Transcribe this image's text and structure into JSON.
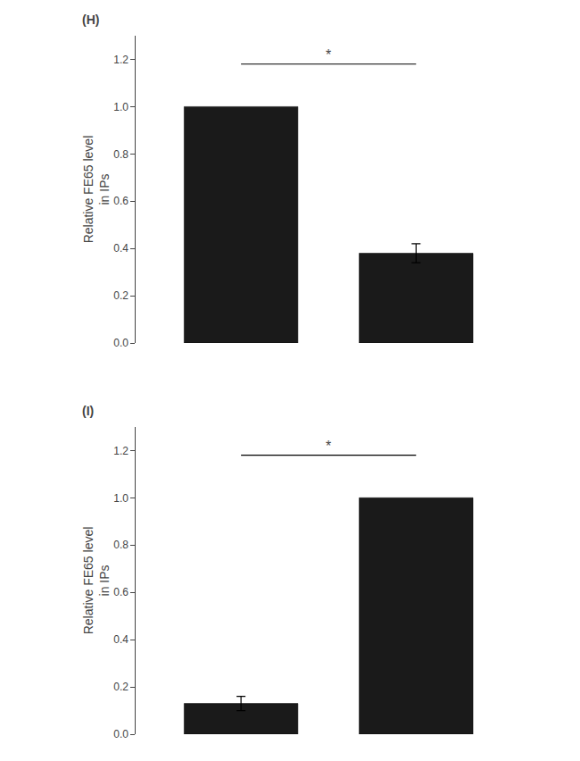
{
  "chart_data": [
    {
      "type": "bar",
      "title": "(H)",
      "categories": [
        null,
        null
      ],
      "values": [
        1.0,
        0.38
      ],
      "errors": [
        null,
        0.04
      ],
      "color": "#1a1a1a",
      "ylabel": "Relative FE65 level\nin IPs",
      "ylim": [
        0,
        1.3
      ],
      "yticks": [
        {
          "value": 0,
          "label": "0.0"
        },
        0.2,
        0.4,
        0.6,
        0.8,
        {
          "value": 1,
          "label": "1.0"
        },
        1.2
      ],
      "tick_labels": "y",
      "grid": false,
      "annotations": [
        {
          "text": "*",
          "y": 1.18
        }
      ]
    },
    {
      "type": "bar",
      "title": "(I)",
      "categories": [
        null,
        null
      ],
      "values": [
        0.13,
        1.0
      ],
      "errors": [
        0.03,
        null
      ],
      "color": "#1a1a1a",
      "ylabel": "Relative FE65 level\nin IPs",
      "ylim": [
        0,
        1.3
      ],
      "yticks": [
        {
          "value": 0,
          "label": "0.0"
        },
        0.2,
        0.4,
        0.6,
        0.8,
        {
          "value": 1,
          "label": "1.0"
        },
        1.2
      ],
      "tick_labels": "y",
      "grid": false,
      "annotations": [
        {
          "text": "*",
          "y": 1.18
        }
      ]
    }
  ]
}
